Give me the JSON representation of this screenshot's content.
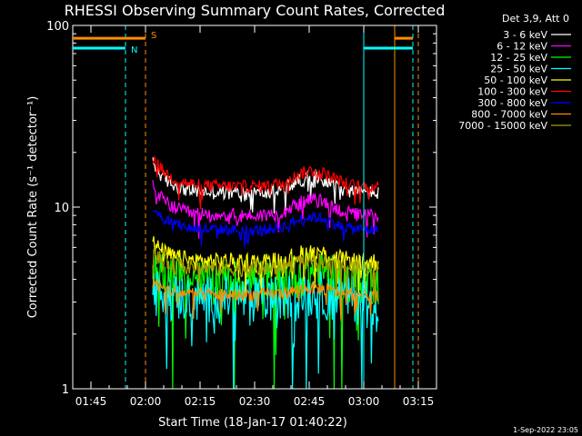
{
  "chart_data": {
    "type": "line",
    "title": "RHESSI Observing Summary Count Rates, Corrected",
    "xlabel": "Start Time (18-Jan-17 01:40:22)",
    "ylabel": "Corrected Count Rate (s⁻¹ detector⁻¹)",
    "yscale": "log",
    "ylim": [
      1,
      100
    ],
    "xlim_minutes_after_0140": [
      0,
      100
    ],
    "x_ticks": [
      {
        "label": "01:45",
        "min": 5
      },
      {
        "label": "02:00",
        "min": 20
      },
      {
        "label": "02:15",
        "min": 35
      },
      {
        "label": "02:30",
        "min": 50
      },
      {
        "label": "02:45",
        "min": 65
      },
      {
        "label": "03:00",
        "min": 80
      },
      {
        "label": "03:15",
        "min": 95
      }
    ],
    "y_ticks": [
      {
        "label": "1",
        "value": 1
      },
      {
        "label": "10",
        "value": 10
      },
      {
        "label": "100",
        "value": 100
      }
    ],
    "legend_title": "Det 3,9, Att 0",
    "series": [
      {
        "name": "3 - 6 keV",
        "color": "#ffffff",
        "level": 12,
        "noise": 0.09,
        "shape": 1
      },
      {
        "name": "6 - 12 keV",
        "color": "#ff00ff",
        "level": 9,
        "noise": 0.09,
        "shape": 1
      },
      {
        "name": "12 - 25 keV",
        "color": "#00ff00",
        "level": 4,
        "noise": 0.28,
        "shape": 0.5
      },
      {
        "name": "25 - 50 keV",
        "color": "#00ffff",
        "level": 3.2,
        "noise": 0.3,
        "shape": 0.3
      },
      {
        "name": "50 - 100 keV",
        "color": "#ffff00",
        "level": 5,
        "noise": 0.12,
        "shape": 0.6
      },
      {
        "name": "100 - 300 keV",
        "color": "#ff0000",
        "level": 13,
        "noise": 0.08,
        "shape": 1
      },
      {
        "name": "300 - 800 keV",
        "color": "#0000ff",
        "level": 7.5,
        "noise": 0.07,
        "shape": 0.8
      },
      {
        "name": "800 - 7000 keV",
        "color": "#ff8c00",
        "level": 3.3,
        "noise": 0.08,
        "shape": 0.4
      },
      {
        "name": "7000 - 15000 keV",
        "color": "#a0a000",
        "level": 4.6,
        "noise": 0.1,
        "shape": 0.5
      }
    ],
    "annotations": [
      {
        "label": "N",
        "color": "#00ffff",
        "start_min": 0,
        "end_min": 14.5,
        "level": 75
      },
      {
        "label": "S",
        "color": "#ff8c00",
        "start_min": 0,
        "end_min": 20,
        "level": 85
      }
    ],
    "vertical_markers": [
      {
        "min": 14.5,
        "color": "#00ffff",
        "style": "dashed"
      },
      {
        "min": 20,
        "color": "#ff8c00",
        "style": "dashed"
      },
      {
        "min": 80,
        "color": "#00ffff",
        "style": "solid"
      },
      {
        "min": 88.5,
        "color": "#ff8c00",
        "style": "solid"
      },
      {
        "min": 93.5,
        "color": "#00ffff",
        "style": "dashed"
      },
      {
        "min": 95,
        "color": "#ff8c00",
        "style": "dashed"
      }
    ],
    "segments_right": [
      {
        "color": "#00ffff",
        "start_min": 80,
        "end_min": 93.5,
        "level": 75
      },
      {
        "color": "#ff8c00",
        "start_min": 88.5,
        "end_min": 93.5,
        "level": 85
      }
    ],
    "data_range_min": [
      22,
      84
    ],
    "footer_timestamp": "1-Sep-2022 23:05"
  }
}
